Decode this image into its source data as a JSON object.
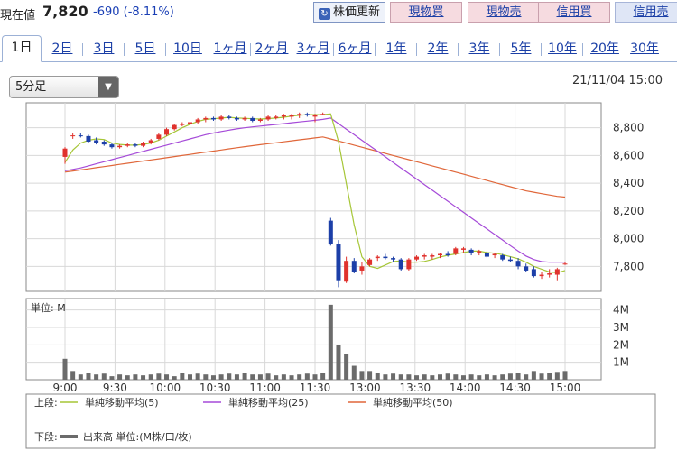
{
  "header": {
    "price_label": "現在値",
    "price_value": "7,820",
    "change": "-690",
    "change_pct": "(-8.11%)",
    "update_button": "株価更新",
    "trade_buttons": [
      "現物買",
      "現物売",
      "信用買",
      "信用売"
    ]
  },
  "tabs": [
    "1日",
    "2日",
    "3日",
    "5日",
    "10日",
    "1ヶ月",
    "2ヶ月",
    "3ヶ月",
    "6ヶ月",
    "1年",
    "2年",
    "3年",
    "5年",
    "10年",
    "20年",
    "30年"
  ],
  "active_tab": "1日",
  "interval_select": "5分足",
  "date": "21/11/04 15:00",
  "colors": {
    "up": "#e0322d",
    "down": "#1c3fa8",
    "ma5": "#a6c637",
    "ma25": "#a54ad8",
    "ma50": "#e0673a",
    "volume": "#6b6b6b"
  },
  "chart_data": [
    {
      "type": "candlestick",
      "ylim": [
        7620,
        8980
      ],
      "y_ticks": [
        "8,800",
        "8,600",
        "8,400",
        "8,200",
        "8,000",
        "7,800"
      ],
      "x_ticks": [
        "9:00",
        "9:30",
        "10:00",
        "10:30",
        "11:00",
        "11:30",
        "13:00",
        "13:30",
        "14:00",
        "14:30",
        "15:00"
      ],
      "candles": [
        {
          "o": 8590,
          "h": 8660,
          "l": 8540,
          "c": 8650
        },
        {
          "o": 8740,
          "h": 8760,
          "l": 8720,
          "c": 8745
        },
        {
          "o": 8745,
          "h": 8760,
          "l": 8730,
          "c": 8740
        },
        {
          "o": 8740,
          "h": 8750,
          "l": 8690,
          "c": 8700
        },
        {
          "o": 8710,
          "h": 8730,
          "l": 8680,
          "c": 8690
        },
        {
          "o": 8700,
          "h": 8710,
          "l": 8670,
          "c": 8680
        },
        {
          "o": 8680,
          "h": 8690,
          "l": 8650,
          "c": 8660
        },
        {
          "o": 8660,
          "h": 8680,
          "l": 8650,
          "c": 8670
        },
        {
          "o": 8670,
          "h": 8690,
          "l": 8660,
          "c": 8680
        },
        {
          "o": 8680,
          "h": 8690,
          "l": 8660,
          "c": 8670
        },
        {
          "o": 8670,
          "h": 8700,
          "l": 8660,
          "c": 8690
        },
        {
          "o": 8690,
          "h": 8720,
          "l": 8680,
          "c": 8710
        },
        {
          "o": 8720,
          "h": 8760,
          "l": 8710,
          "c": 8750
        },
        {
          "o": 8750,
          "h": 8800,
          "l": 8740,
          "c": 8790
        },
        {
          "o": 8790,
          "h": 8830,
          "l": 8780,
          "c": 8820
        },
        {
          "o": 8820,
          "h": 8840,
          "l": 8810,
          "c": 8830
        },
        {
          "o": 8830,
          "h": 8850,
          "l": 8820,
          "c": 8840
        },
        {
          "o": 8840,
          "h": 8870,
          "l": 8830,
          "c": 8860
        },
        {
          "o": 8860,
          "h": 8880,
          "l": 8840,
          "c": 8870
        },
        {
          "o": 8870,
          "h": 8880,
          "l": 8850,
          "c": 8860
        },
        {
          "o": 8860,
          "h": 8890,
          "l": 8850,
          "c": 8880
        },
        {
          "o": 8880,
          "h": 8890,
          "l": 8860,
          "c": 8870
        },
        {
          "o": 8870,
          "h": 8880,
          "l": 8850,
          "c": 8860
        },
        {
          "o": 8860,
          "h": 8880,
          "l": 8850,
          "c": 8870
        },
        {
          "o": 8870,
          "h": 8880,
          "l": 8840,
          "c": 8850
        },
        {
          "o": 8850,
          "h": 8870,
          "l": 8840,
          "c": 8860
        },
        {
          "o": 8860,
          "h": 8890,
          "l": 8850,
          "c": 8880
        },
        {
          "o": 8870,
          "h": 8890,
          "l": 8860,
          "c": 8880
        },
        {
          "o": 8880,
          "h": 8900,
          "l": 8860,
          "c": 8890
        },
        {
          "o": 8880,
          "h": 8900,
          "l": 8860,
          "c": 8890
        },
        {
          "o": 8890,
          "h": 8910,
          "l": 8870,
          "c": 8900
        },
        {
          "o": 8900,
          "h": 8910,
          "l": 8880,
          "c": 8890
        },
        {
          "o": 8880,
          "h": 8900,
          "l": 8840,
          "c": 8890
        },
        {
          "o": 8900,
          "h": 8910,
          "l": 8890,
          "c": 8900
        },
        {
          "o": 8130,
          "h": 8150,
          "l": 7950,
          "c": 7960
        },
        {
          "o": 7960,
          "h": 7990,
          "l": 7650,
          "c": 7700
        },
        {
          "o": 7690,
          "h": 7870,
          "l": 7680,
          "c": 7840
        },
        {
          "o": 7840,
          "h": 7860,
          "l": 7750,
          "c": 7760
        },
        {
          "o": 7770,
          "h": 7830,
          "l": 7740,
          "c": 7800
        },
        {
          "o": 7810,
          "h": 7860,
          "l": 7800,
          "c": 7850
        },
        {
          "o": 7860,
          "h": 7880,
          "l": 7840,
          "c": 7870
        },
        {
          "o": 7870,
          "h": 7890,
          "l": 7850,
          "c": 7860
        },
        {
          "o": 7860,
          "h": 7870,
          "l": 7830,
          "c": 7850
        },
        {
          "o": 7850,
          "h": 7860,
          "l": 7770,
          "c": 7780
        },
        {
          "o": 7780,
          "h": 7860,
          "l": 7770,
          "c": 7850
        },
        {
          "o": 7850,
          "h": 7880,
          "l": 7840,
          "c": 7870
        },
        {
          "o": 7870,
          "h": 7890,
          "l": 7850,
          "c": 7880
        },
        {
          "o": 7870,
          "h": 7890,
          "l": 7850,
          "c": 7880
        },
        {
          "o": 7880,
          "h": 7900,
          "l": 7860,
          "c": 7890
        },
        {
          "o": 7890,
          "h": 7910,
          "l": 7870,
          "c": 7880
        },
        {
          "o": 7890,
          "h": 7940,
          "l": 7880,
          "c": 7930
        },
        {
          "o": 7920,
          "h": 7940,
          "l": 7900,
          "c": 7930
        },
        {
          "o": 7920,
          "h": 7930,
          "l": 7880,
          "c": 7900
        },
        {
          "o": 7900,
          "h": 7920,
          "l": 7880,
          "c": 7910
        },
        {
          "o": 7900,
          "h": 7910,
          "l": 7860,
          "c": 7870
        },
        {
          "o": 7880,
          "h": 7900,
          "l": 7860,
          "c": 7890
        },
        {
          "o": 7880,
          "h": 7890,
          "l": 7840,
          "c": 7850
        },
        {
          "o": 7850,
          "h": 7870,
          "l": 7830,
          "c": 7840
        },
        {
          "o": 7840,
          "h": 7860,
          "l": 7780,
          "c": 7800
        },
        {
          "o": 7800,
          "h": 7820,
          "l": 7760,
          "c": 7770
        },
        {
          "o": 7780,
          "h": 7800,
          "l": 7720,
          "c": 7730
        },
        {
          "o": 7730,
          "h": 7760,
          "l": 7710,
          "c": 7740
        },
        {
          "o": 7740,
          "h": 7780,
          "l": 7720,
          "c": 7750
        },
        {
          "o": 7740,
          "h": 7790,
          "l": 7700,
          "c": 7780
        },
        {
          "o": 7820,
          "h": 7830,
          "l": 7810,
          "c": 7820
        }
      ],
      "ma5": [
        8550,
        8640,
        8690,
        8710,
        8720,
        8715,
        8690,
        8680,
        8675,
        8675,
        8680,
        8690,
        8710,
        8740,
        8770,
        8800,
        8825,
        8845,
        8860,
        8865,
        8870,
        8875,
        8870,
        8868,
        8865,
        8863,
        8866,
        8870,
        8876,
        8884,
        8890,
        8895,
        8895,
        8895,
        8900,
        8700,
        8400,
        8100,
        7870,
        7800,
        7785,
        7810,
        7835,
        7840,
        7830,
        7830,
        7836,
        7850,
        7868,
        7880,
        7890,
        7900,
        7910,
        7910,
        7900,
        7895,
        7885,
        7870,
        7855,
        7830,
        7800,
        7780,
        7760,
        7755,
        7770
      ],
      "ma25": [
        8490,
        8500,
        8510,
        8525,
        8540,
        8555,
        8570,
        8585,
        8600,
        8615,
        8630,
        8645,
        8660,
        8675,
        8690,
        8705,
        8720,
        8735,
        8750,
        8762,
        8773,
        8783,
        8792,
        8800,
        8806,
        8812,
        8818,
        8824,
        8830,
        8836,
        8842,
        8848,
        8854,
        8860,
        8870,
        8830,
        8790,
        8750,
        8710,
        8670,
        8630,
        8590,
        8550,
        8510,
        8470,
        8430,
        8390,
        8350,
        8310,
        8270,
        8230,
        8190,
        8150,
        8110,
        8070,
        8030,
        7990,
        7950,
        7910,
        7875,
        7850,
        7835,
        7830,
        7830,
        7830
      ],
      "ma50": [
        8480,
        8488,
        8496,
        8504,
        8512,
        8520,
        8528,
        8536,
        8544,
        8552,
        8560,
        8568,
        8576,
        8584,
        8592,
        8600,
        8608,
        8616,
        8624,
        8632,
        8640,
        8648,
        8656,
        8664,
        8671,
        8678,
        8685,
        8692,
        8699,
        8706,
        8713,
        8720,
        8727,
        8734,
        8720,
        8705,
        8690,
        8675,
        8660,
        8645,
        8630,
        8615,
        8600,
        8585,
        8570,
        8555,
        8540,
        8525,
        8510,
        8495,
        8480,
        8465,
        8450,
        8435,
        8420,
        8405,
        8390,
        8375,
        8360,
        8345,
        8335,
        8325,
        8315,
        8305,
        8300
      ],
      "legend": [
        {
          "label": "単純移動平均(5)",
          "color_key": "ma5"
        },
        {
          "label": "単純移動平均(25)",
          "color_key": "ma25"
        },
        {
          "label": "単純移動平均(50)",
          "color_key": "ma50"
        }
      ],
      "legend_prefix": "上段:"
    },
    {
      "type": "bar",
      "ylabel": "単位: M",
      "ylim": [
        0,
        4.5
      ],
      "y_ticks": [
        "4M",
        "3M",
        "2M",
        "1M"
      ],
      "values": [
        1.2,
        0.5,
        0.3,
        0.4,
        0.3,
        0.35,
        0.2,
        0.3,
        0.25,
        0.3,
        0.25,
        0.3,
        0.35,
        0.3,
        0.2,
        0.4,
        0.3,
        0.35,
        0.3,
        0.25,
        0.3,
        0.35,
        0.3,
        0.4,
        0.3,
        0.3,
        0.35,
        0.25,
        0.3,
        0.25,
        0.3,
        0.35,
        0.3,
        0.4,
        4.3,
        2.0,
        1.5,
        0.8,
        0.5,
        0.5,
        0.4,
        0.3,
        0.35,
        0.3,
        0.3,
        0.25,
        0.3,
        0.25,
        0.3,
        0.35,
        0.3,
        0.25,
        0.3,
        0.25,
        0.3,
        0.25,
        0.3,
        0.35,
        0.4,
        0.3,
        0.5,
        0.35,
        0.4,
        0.45,
        0.5
      ],
      "legend_prefix": "下段:",
      "legend_label": "出来高 単位:(M株/口/枚)"
    }
  ]
}
